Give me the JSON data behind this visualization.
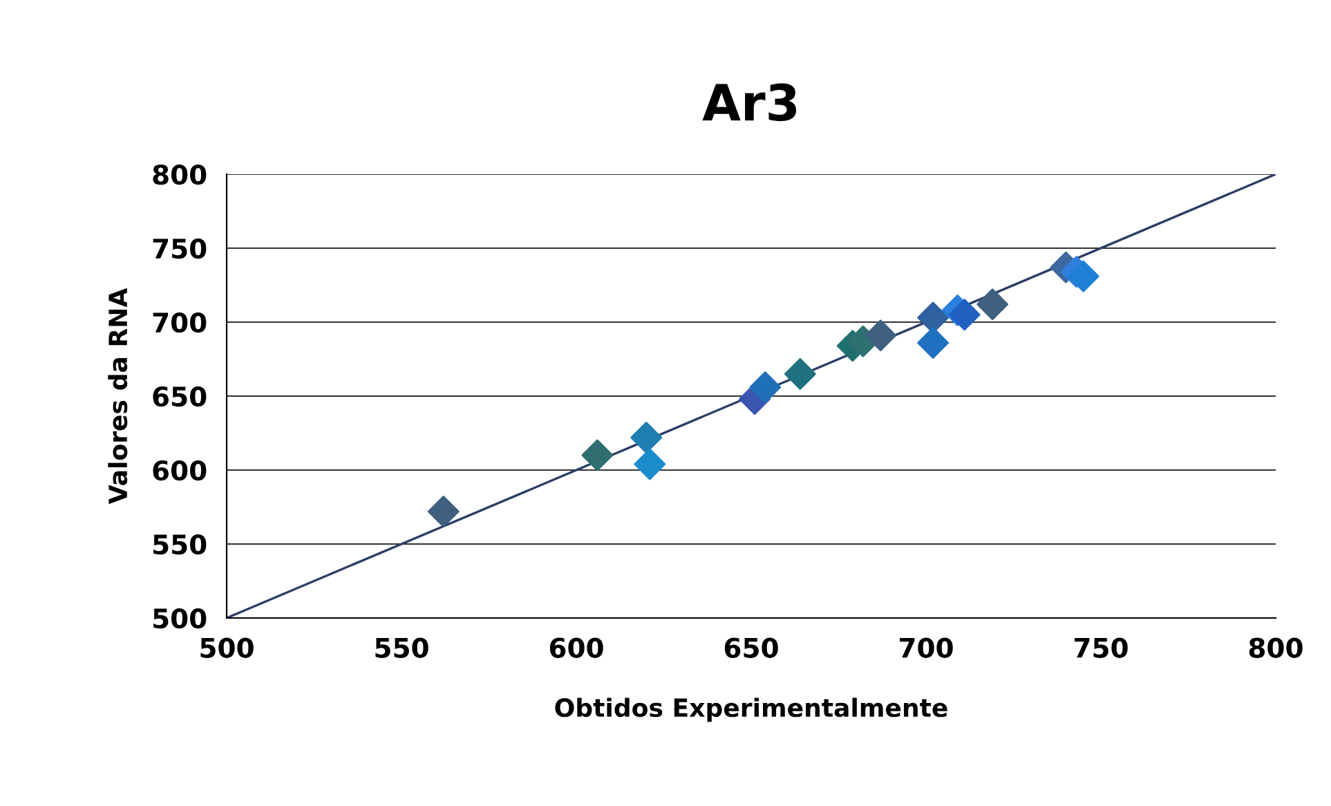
{
  "chart_data": {
    "type": "scatter",
    "title": "Ar3",
    "xlabel": "Obtidos Experimentalmente",
    "ylabel": "Valores da RNA",
    "xlim": [
      500,
      800
    ],
    "ylim": [
      500,
      800
    ],
    "xticks": [
      500,
      550,
      600,
      650,
      700,
      750,
      800
    ],
    "yticks": [
      500,
      550,
      600,
      650,
      700,
      750,
      800
    ],
    "grid": "y",
    "marker": "diamond",
    "legend": false,
    "series": [
      {
        "x": [
          562,
          606,
          620,
          621,
          651,
          654,
          664,
          679,
          682,
          687,
          702,
          702,
          709,
          711,
          719,
          740,
          743,
          745
        ],
        "values": [
          572,
          610,
          622,
          604,
          648,
          656,
          665,
          684,
          687,
          691,
          703,
          686,
          708,
          705,
          712,
          737,
          734,
          731
        ],
        "colors": [
          "#3f5f7f",
          "#2f6f70",
          "#1f7fb0",
          "#1a8ccc",
          "#3a55b0",
          "#2070b8",
          "#1f7080",
          "#1f6f70",
          "#2f7070",
          "#3f6080",
          "#2f60a0",
          "#1f70c0",
          "#2a7fdf",
          "#1f60c0",
          "#3f5f7f",
          "#3f68a0",
          "#2f7fdf",
          "#1f80d8"
        ]
      },
      {
        "type": "line",
        "x": [
          500,
          800
        ],
        "values": [
          500,
          800
        ],
        "color": "#2a3d66",
        "marker": "none"
      }
    ]
  }
}
